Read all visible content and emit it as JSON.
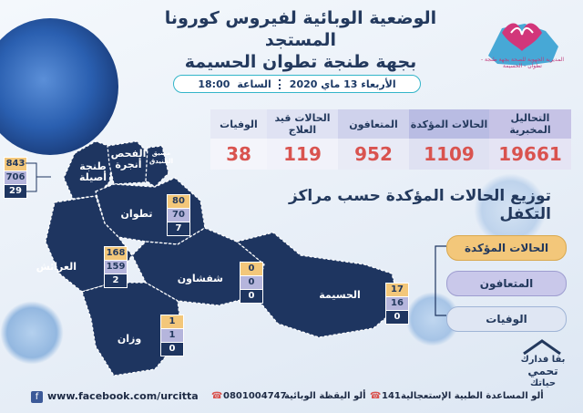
{
  "header": {
    "title_line1": "الوضعية الوبائية لفيروس كورونا المستجد",
    "title_line2": "بجهة طنجة تطوان الحسيمة",
    "logo_text": "المديرية الجهوية للصحة بجهة طنجة - تطوان - الحسيمة"
  },
  "datebar": {
    "date": "الأربعاء 13 ماي 2020",
    "time_label": "الساعة",
    "time": "18:00"
  },
  "stats": [
    {
      "label": "التحاليل المخبرية",
      "value": "19661",
      "bg": "#c6c3e6"
    },
    {
      "label": "الحالات المؤكدة",
      "value": "1109",
      "bg": "#b9bce3"
    },
    {
      "label": "المتعافون",
      "value": "952",
      "bg": "#cfd2ec"
    },
    {
      "label": "الحالات قيد العلاج",
      "value": "119",
      "bg": "#dfe2f3"
    },
    {
      "label": "الوفيات",
      "value": "38",
      "bg": "#e6e9f5"
    }
  ],
  "section_title": "توزيع الحالات المؤكدة حسب مراكز التكفل",
  "regions": {
    "tanger": {
      "name_line1": "طنجة",
      "name_line2": "أصيلة",
      "confirmed": "843",
      "recovered": "706",
      "deaths": "29"
    },
    "fahs": {
      "name_line1": "الفحص",
      "name_line2": "أنجرة"
    },
    "mdiq": {
      "name_line1": "مضيق",
      "name_line2": "الفنيدق"
    },
    "tetouan": {
      "name": "تطوان",
      "confirmed": "80",
      "recovered": "70",
      "deaths": "7"
    },
    "larache": {
      "name": "العرائش",
      "confirmed": "168",
      "recovered": "159",
      "deaths": "2"
    },
    "chefchaouen": {
      "name": "شفشاون",
      "confirmed": "0",
      "recovered": "0",
      "deaths": "0"
    },
    "alhoceima": {
      "name": "الحسيمة",
      "confirmed": "17",
      "recovered": "16",
      "deaths": "0"
    },
    "ouezzane": {
      "name": "وزان",
      "confirmed": "1",
      "recovered": "1",
      "deaths": "0"
    }
  },
  "legend": {
    "confirmed": "الحالات المؤكدة",
    "recovered": "المتعافون",
    "deaths": "الوفيات"
  },
  "slogan": {
    "line1": "بقا فدارك",
    "line2": "تحمي",
    "line3": "حياتك"
  },
  "footer": {
    "facebook": "www.facebook.com/urcitta",
    "hotline_label": "ألو اليقظة الوبائية",
    "hotline_number": "0801004747",
    "emergency_label": "ألو المساعدة الطبية الإستعجالية",
    "emergency_number": "141"
  },
  "colors": {
    "map": "#1e3560",
    "accent": "#33b5c9",
    "confirmed": "#f3c77a",
    "recovered": "#b5b5dc",
    "deaths": "#1e3560",
    "value": "#d9534f"
  }
}
